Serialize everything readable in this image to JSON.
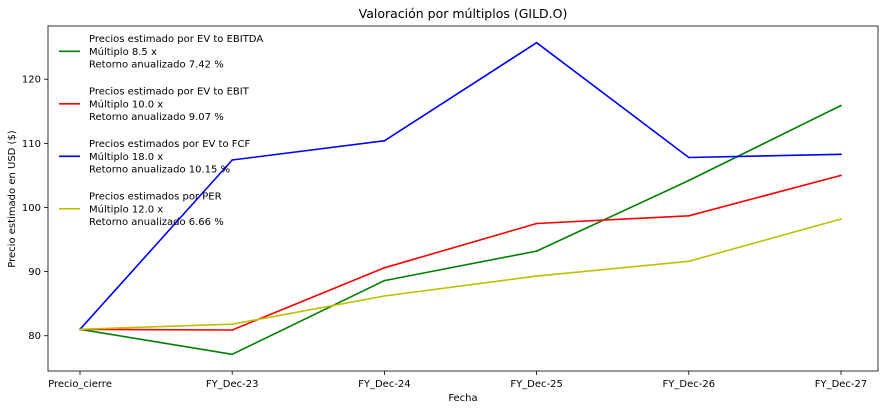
{
  "chart_data": {
    "type": "line",
    "title": "Valoración por múltiplos (GILD.O)",
    "xlabel": "Fecha",
    "ylabel": "Precio estimado en USD ($)",
    "categories": [
      "Precio_cierre",
      "FY_Dec-23",
      "FY_Dec-24",
      "FY_Dec-25",
      "FY_Dec-26",
      "FY_Dec-27"
    ],
    "ylim": [
      74.5,
      128.3
    ],
    "yticks": [
      80,
      90,
      100,
      110,
      120
    ],
    "grid": false,
    "legend_position": "upper-left",
    "series": [
      {
        "name": "Precios estimado por EV to EBITDA",
        "legend_lines": [
          "Precios estimado por EV to EBITDA",
          "Múltiplo 8.5 x",
          "Retorno anualizado 7.42 %"
        ],
        "color": "#008000",
        "values": [
          81.0,
          77.1,
          88.6,
          93.2,
          104.2,
          115.9
        ]
      },
      {
        "name": "Precios estimado por EV to EBIT",
        "legend_lines": [
          "Precios estimado por EV to EBIT",
          "Múltiplo 10.0 x",
          "Retorno anualizado 9.07 %"
        ],
        "color": "#ff0000",
        "values": [
          81.0,
          80.9,
          90.6,
          97.5,
          98.7,
          105.0
        ]
      },
      {
        "name": "Precios estimados por EV to FCF",
        "legend_lines": [
          "Precios estimados por EV to FCF",
          "Múltiplo 18.0 x",
          "Retorno anualizado 10.15 %"
        ],
        "color": "#0000ff",
        "values": [
          81.0,
          107.4,
          110.4,
          125.7,
          107.8,
          108.3
        ]
      },
      {
        "name": "Precios estimados por PER",
        "legend_lines": [
          "Precios estimados por PER",
          "Múltiplo 12.0 x",
          "Retorno anualizado 6.66 %"
        ],
        "color": "#bfbf00",
        "values": [
          81.0,
          81.8,
          86.2,
          89.3,
          91.6,
          98.2
        ]
      }
    ]
  }
}
